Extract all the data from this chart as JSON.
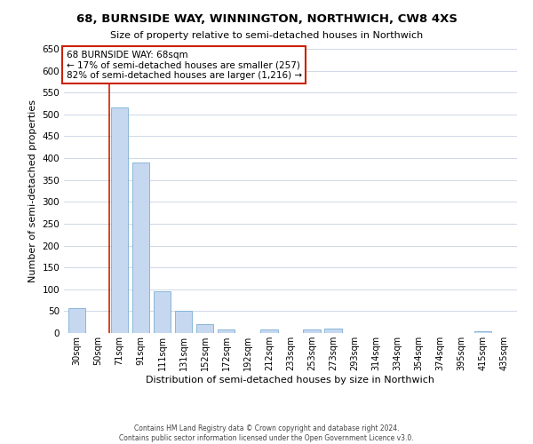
{
  "title": "68, BURNSIDE WAY, WINNINGTON, NORTHWICH, CW8 4XS",
  "subtitle": "Size of property relative to semi-detached houses in Northwich",
  "xlabel": "Distribution of semi-detached houses by size in Northwich",
  "ylabel": "Number of semi-detached properties",
  "footnote1": "Contains HM Land Registry data © Crown copyright and database right 2024.",
  "footnote2": "Contains public sector information licensed under the Open Government Licence v3.0.",
  "bar_labels": [
    "30sqm",
    "50sqm",
    "71sqm",
    "91sqm",
    "111sqm",
    "131sqm",
    "152sqm",
    "172sqm",
    "192sqm",
    "212sqm",
    "233sqm",
    "253sqm",
    "273sqm",
    "293sqm",
    "314sqm",
    "334sqm",
    "354sqm",
    "374sqm",
    "395sqm",
    "415sqm",
    "435sqm"
  ],
  "bar_values": [
    57,
    0,
    515,
    390,
    95,
    50,
    20,
    8,
    0,
    8,
    0,
    8,
    10,
    0,
    0,
    0,
    0,
    0,
    0,
    5,
    0
  ],
  "bar_color": "#c5d8f0",
  "bar_edge_color": "#7bafd4",
  "highlight_color": "#cc2200",
  "annotation_line1": "68 BURNSIDE WAY: 68sqm",
  "annotation_line2": "← 17% of semi-detached houses are smaller (257)",
  "annotation_line3": "82% of semi-detached houses are larger (1,216) →",
  "annotation_box_color": "#ffffff",
  "annotation_box_edge": "#cc2200",
  "vline_x_index": 2,
  "ylim": [
    0,
    650
  ],
  "yticks": [
    0,
    50,
    100,
    150,
    200,
    250,
    300,
    350,
    400,
    450,
    500,
    550,
    600,
    650
  ],
  "background_color": "#ffffff",
  "grid_color": "#d0d8e8"
}
